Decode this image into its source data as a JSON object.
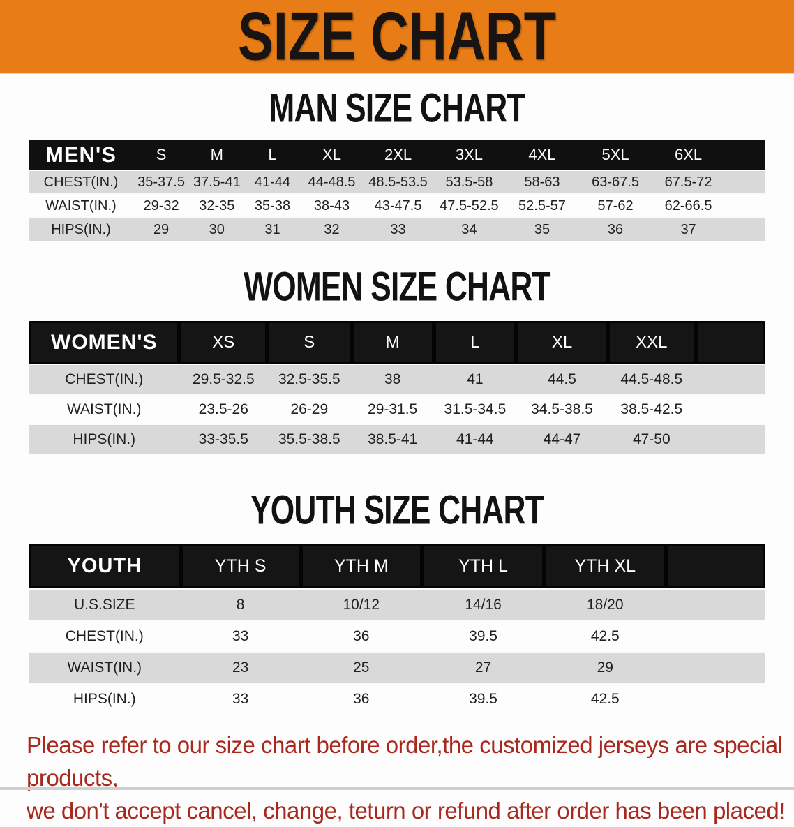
{
  "banner": {
    "title": "SIZE CHART",
    "bg_color": "#e87d18",
    "text_color": "#191411"
  },
  "colors": {
    "header_bar": "#101010",
    "row_stripe": "#d9d9d9",
    "disclaimer_red": "#a8281e"
  },
  "sections": [
    {
      "title": "MAN SIZE CHART",
      "table": {
        "header_label": "MEN'S",
        "sizes": [
          "S",
          "M",
          "L",
          "XL",
          "2XL",
          "3XL",
          "4XL",
          "5XL",
          "6XL"
        ],
        "rows": [
          {
            "label": "CHEST(IN.)",
            "values": [
              "35-37.5",
              "37.5-41",
              "41-44",
              "44-48.5",
              "48.5-53.5",
              "53.5-58",
              "58-63",
              "63-67.5",
              "67.5-72"
            ]
          },
          {
            "label": "WAIST(IN.)",
            "values": [
              "29-32",
              "32-35",
              "35-38",
              "38-43",
              "43-47.5",
              "47.5-52.5",
              "52.5-57",
              "57-62",
              "62-66.5"
            ]
          },
          {
            "label": "HIPS(IN.)",
            "values": [
              "29",
              "30",
              "31",
              "32",
              "33",
              "34",
              "35",
              "36",
              "37"
            ]
          }
        ]
      }
    },
    {
      "title": "WOMEN SIZE CHART",
      "table": {
        "header_label": "WOMEN'S",
        "sizes": [
          "XS",
          "S",
          "M",
          "L",
          "XL",
          "XXL"
        ],
        "rows": [
          {
            "label": "CHEST(IN.)",
            "values": [
              "29.5-32.5",
              "32.5-35.5",
              "38",
              "41",
              "44.5",
              "44.5-48.5"
            ]
          },
          {
            "label": "WAIST(IN.)",
            "values": [
              "23.5-26",
              "26-29",
              "29-31.5",
              "31.5-34.5",
              "34.5-38.5",
              "38.5-42.5"
            ]
          },
          {
            "label": "HIPS(IN.)",
            "values": [
              "33-35.5",
              "35.5-38.5",
              "38.5-41",
              "41-44",
              "44-47",
              "47-50"
            ]
          }
        ]
      }
    },
    {
      "title": "YOUTH SIZE CHART",
      "table": {
        "header_label": "YOUTH",
        "sizes": [
          "YTH S",
          "YTH M",
          "YTH L",
          "YTH XL"
        ],
        "rows": [
          {
            "label": "U.S.SIZE",
            "values": [
              "8",
              "10/12",
              "14/16",
              "18/20"
            ]
          },
          {
            "label": "CHEST(IN.)",
            "values": [
              "33",
              "36",
              "39.5",
              "42.5"
            ]
          },
          {
            "label": "WAIST(IN.)",
            "values": [
              "23",
              "25",
              "27",
              "29"
            ]
          },
          {
            "label": "HIPS(IN.)",
            "values": [
              "33",
              "36",
              "39.5",
              "42.5"
            ]
          }
        ]
      }
    }
  ],
  "chart_data": [
    {
      "type": "table",
      "title": "MAN SIZE CHART",
      "columns": [
        "MEN'S",
        "S",
        "M",
        "L",
        "XL",
        "2XL",
        "3XL",
        "4XL",
        "5XL",
        "6XL"
      ],
      "rows": [
        [
          "CHEST(IN.)",
          "35-37.5",
          "37.5-41",
          "41-44",
          "44-48.5",
          "48.5-53.5",
          "53.5-58",
          "58-63",
          "63-67.5",
          "67.5-72"
        ],
        [
          "WAIST(IN.)",
          "29-32",
          "32-35",
          "35-38",
          "38-43",
          "43-47.5",
          "47.5-52.5",
          "52.5-57",
          "57-62",
          "62-66.5"
        ],
        [
          "HIPS(IN.)",
          "29",
          "30",
          "31",
          "32",
          "33",
          "34",
          "35",
          "36",
          "37"
        ]
      ]
    },
    {
      "type": "table",
      "title": "WOMEN SIZE CHART",
      "columns": [
        "WOMEN'S",
        "XS",
        "S",
        "M",
        "L",
        "XL",
        "XXL"
      ],
      "rows": [
        [
          "CHEST(IN.)",
          "29.5-32.5",
          "32.5-35.5",
          "38",
          "41",
          "44.5",
          "44.5-48.5"
        ],
        [
          "WAIST(IN.)",
          "23.5-26",
          "26-29",
          "29-31.5",
          "31.5-34.5",
          "34.5-38.5",
          "38.5-42.5"
        ],
        [
          "HIPS(IN.)",
          "33-35.5",
          "35.5-38.5",
          "38.5-41",
          "41-44",
          "44-47",
          "47-50"
        ]
      ]
    },
    {
      "type": "table",
      "title": "YOUTH SIZE CHART",
      "columns": [
        "YOUTH",
        "YTH S",
        "YTH M",
        "YTH L",
        "YTH XL"
      ],
      "rows": [
        [
          "U.S.SIZE",
          "8",
          "10/12",
          "14/16",
          "18/20"
        ],
        [
          "CHEST(IN.)",
          "33",
          "36",
          "39.5",
          "42.5"
        ],
        [
          "WAIST(IN.)",
          "23",
          "25",
          "27",
          "29"
        ],
        [
          "HIPS(IN.)",
          "33",
          "36",
          "39.5",
          "42.5"
        ]
      ]
    }
  ],
  "disclaimer": {
    "line1": "Please refer to our size chart before order,the customized jerseys are special products,",
    "line2": "we don't accept cancel, change, teturn or refund after order has been placed!",
    "color": "#a8281e"
  }
}
